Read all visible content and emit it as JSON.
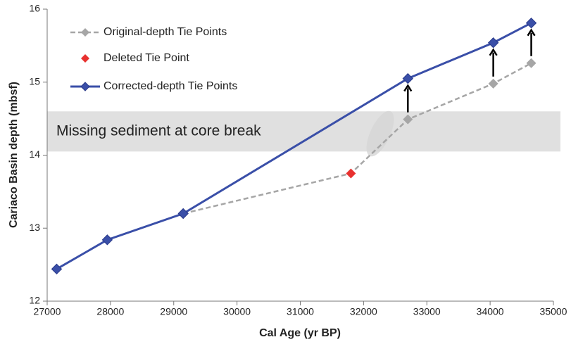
{
  "chart_data": {
    "type": "line",
    "x_label": "Cal Age (yr BP)",
    "y_label": "Cariaco Basin depth (mbsf)",
    "xlim": [
      27000,
      35000
    ],
    "ylim": [
      12,
      16
    ],
    "xticks": [
      27000,
      28000,
      29000,
      30000,
      31000,
      32000,
      33000,
      34000,
      35000
    ],
    "yticks": [
      12,
      13,
      14,
      15,
      16
    ],
    "grid": false,
    "legend": "upper left",
    "band": {
      "label": "Missing sediment at core break",
      "ylim": [
        14.05,
        14.6
      ],
      "color": "#e0e0e0"
    },
    "series": [
      {
        "name": "Original-depth Tie Points",
        "color": "#a6a6a6",
        "dashed": true,
        "x": [
          29150,
          31800,
          32700,
          34050,
          34650
        ],
        "values": [
          13.2,
          13.75,
          14.49,
          14.98,
          15.26
        ]
      },
      {
        "name": "Deleted Tie Point",
        "color": "#e8312f",
        "marker_only": true,
        "x": [
          31800
        ],
        "values": [
          13.75
        ]
      },
      {
        "name": "Corrected-depth Tie Points",
        "color": "#3a4fa8",
        "x": [
          27150,
          27950,
          29150,
          32700,
          34050,
          34650
        ],
        "values": [
          12.44,
          12.84,
          13.2,
          15.05,
          15.54,
          15.81
        ]
      }
    ]
  }
}
